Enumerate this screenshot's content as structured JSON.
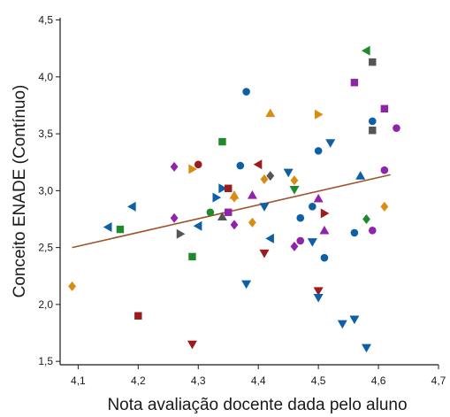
{
  "chart_data": {
    "type": "scatter",
    "title": "",
    "xlabel": "Nota avaliação docente dada pelo aluno",
    "ylabel": "Conceito ENADE (Contínuo)",
    "xlim": [
      4.07,
      4.7
    ],
    "ylim": [
      1.47,
      4.52
    ],
    "x_ticks": [
      "4,1",
      "4,2",
      "4,3",
      "4,4",
      "4,5",
      "4,6",
      "4,7"
    ],
    "y_ticks": [
      "1,5",
      "2,0",
      "2,5",
      "3,0",
      "3,5",
      "4,0",
      "4,5"
    ],
    "grid": false,
    "legend": "none",
    "trendline": {
      "x": [
        4.09,
        4.62
      ],
      "y": [
        2.5,
        3.14
      ],
      "color": "#a0522d"
    },
    "colors": {
      "blue": "#0d5fa6",
      "darkred": "#9b1c1c",
      "orange": "#d98c12",
      "green": "#1f8a2c",
      "gray": "#555555",
      "purple": "#8e24aa",
      "axis": "#1a1a1a"
    },
    "points": [
      {
        "x": 4.09,
        "y": 2.16,
        "shape": "diamond",
        "color": "orange"
      },
      {
        "x": 4.15,
        "y": 2.68,
        "shape": "tri-left",
        "color": "blue"
      },
      {
        "x": 4.17,
        "y": 2.66,
        "shape": "square",
        "color": "green"
      },
      {
        "x": 4.19,
        "y": 2.86,
        "shape": "tri-left",
        "color": "blue"
      },
      {
        "x": 4.2,
        "y": 1.9,
        "shape": "square",
        "color": "darkred"
      },
      {
        "x": 4.26,
        "y": 2.76,
        "shape": "diamond",
        "color": "purple"
      },
      {
        "x": 4.26,
        "y": 3.21,
        "shape": "diamond",
        "color": "purple"
      },
      {
        "x": 4.27,
        "y": 2.62,
        "shape": "tri-right",
        "color": "gray"
      },
      {
        "x": 4.29,
        "y": 2.42,
        "shape": "square",
        "color": "green"
      },
      {
        "x": 4.29,
        "y": 3.19,
        "shape": "tri-right",
        "color": "orange"
      },
      {
        "x": 4.29,
        "y": 1.65,
        "shape": "tri-down",
        "color": "darkred"
      },
      {
        "x": 4.3,
        "y": 3.23,
        "shape": "circle",
        "color": "darkred"
      },
      {
        "x": 4.3,
        "y": 2.69,
        "shape": "tri-left",
        "color": "blue"
      },
      {
        "x": 4.32,
        "y": 2.81,
        "shape": "circle",
        "color": "green"
      },
      {
        "x": 4.33,
        "y": 2.94,
        "shape": "tri-right",
        "color": "blue"
      },
      {
        "x": 4.34,
        "y": 3.43,
        "shape": "square",
        "color": "green"
      },
      {
        "x": 4.34,
        "y": 3.02,
        "shape": "tri-right",
        "color": "blue"
      },
      {
        "x": 4.34,
        "y": 2.77,
        "shape": "tri-up",
        "color": "gray"
      },
      {
        "x": 4.35,
        "y": 2.81,
        "shape": "square",
        "color": "purple"
      },
      {
        "x": 4.35,
        "y": 3.02,
        "shape": "square",
        "color": "darkred"
      },
      {
        "x": 4.36,
        "y": 2.96,
        "shape": "tri-up",
        "color": "orange"
      },
      {
        "x": 4.36,
        "y": 2.94,
        "shape": "diamond",
        "color": "orange"
      },
      {
        "x": 4.36,
        "y": 2.7,
        "shape": "diamond",
        "color": "purple"
      },
      {
        "x": 4.37,
        "y": 3.22,
        "shape": "circle",
        "color": "blue"
      },
      {
        "x": 4.38,
        "y": 3.87,
        "shape": "circle",
        "color": "blue"
      },
      {
        "x": 4.38,
        "y": 2.18,
        "shape": "tri-down",
        "color": "blue"
      },
      {
        "x": 4.39,
        "y": 2.96,
        "shape": "tri-up",
        "color": "purple"
      },
      {
        "x": 4.39,
        "y": 2.72,
        "shape": "diamond",
        "color": "orange"
      },
      {
        "x": 4.4,
        "y": 3.23,
        "shape": "tri-left",
        "color": "darkred"
      },
      {
        "x": 4.41,
        "y": 3.1,
        "shape": "diamond",
        "color": "orange"
      },
      {
        "x": 4.41,
        "y": 2.45,
        "shape": "tri-down",
        "color": "darkred"
      },
      {
        "x": 4.41,
        "y": 2.86,
        "shape": "tri-down",
        "color": "blue"
      },
      {
        "x": 4.42,
        "y": 3.68,
        "shape": "tri-up",
        "color": "orange"
      },
      {
        "x": 4.42,
        "y": 3.13,
        "shape": "diamond",
        "color": "gray"
      },
      {
        "x": 4.42,
        "y": 2.58,
        "shape": "tri-left",
        "color": "blue"
      },
      {
        "x": 4.45,
        "y": 3.16,
        "shape": "tri-down",
        "color": "blue"
      },
      {
        "x": 4.46,
        "y": 3.09,
        "shape": "diamond",
        "color": "orange"
      },
      {
        "x": 4.46,
        "y": 3.01,
        "shape": "tri-down",
        "color": "green"
      },
      {
        "x": 4.46,
        "y": 2.51,
        "shape": "diamond",
        "color": "purple"
      },
      {
        "x": 4.47,
        "y": 2.56,
        "shape": "circle",
        "color": "purple"
      },
      {
        "x": 4.47,
        "y": 2.76,
        "shape": "circle",
        "color": "blue"
      },
      {
        "x": 4.49,
        "y": 2.86,
        "shape": "circle",
        "color": "blue"
      },
      {
        "x": 4.49,
        "y": 2.55,
        "shape": "tri-down",
        "color": "blue"
      },
      {
        "x": 4.5,
        "y": 3.67,
        "shape": "tri-right",
        "color": "orange"
      },
      {
        "x": 4.5,
        "y": 3.35,
        "shape": "circle",
        "color": "blue"
      },
      {
        "x": 4.5,
        "y": 2.93,
        "shape": "tri-up",
        "color": "purple"
      },
      {
        "x": 4.5,
        "y": 2.12,
        "shape": "tri-down",
        "color": "darkred"
      },
      {
        "x": 4.5,
        "y": 2.06,
        "shape": "tri-down",
        "color": "blue"
      },
      {
        "x": 4.51,
        "y": 2.8,
        "shape": "tri-right",
        "color": "darkred"
      },
      {
        "x": 4.51,
        "y": 2.65,
        "shape": "tri-up",
        "color": "purple"
      },
      {
        "x": 4.51,
        "y": 2.41,
        "shape": "circle",
        "color": "blue"
      },
      {
        "x": 4.52,
        "y": 3.42,
        "shape": "tri-down",
        "color": "blue"
      },
      {
        "x": 4.54,
        "y": 1.83,
        "shape": "tri-down",
        "color": "blue"
      },
      {
        "x": 4.56,
        "y": 3.95,
        "shape": "square",
        "color": "purple"
      },
      {
        "x": 4.56,
        "y": 2.63,
        "shape": "circle",
        "color": "blue"
      },
      {
        "x": 4.56,
        "y": 1.87,
        "shape": "tri-down",
        "color": "blue"
      },
      {
        "x": 4.57,
        "y": 3.13,
        "shape": "tri-up",
        "color": "blue"
      },
      {
        "x": 4.58,
        "y": 4.23,
        "shape": "tri-left",
        "color": "green"
      },
      {
        "x": 4.58,
        "y": 2.75,
        "shape": "diamond",
        "color": "green"
      },
      {
        "x": 4.58,
        "y": 1.62,
        "shape": "tri-down",
        "color": "blue"
      },
      {
        "x": 4.59,
        "y": 4.13,
        "shape": "square",
        "color": "gray"
      },
      {
        "x": 4.59,
        "y": 3.61,
        "shape": "circle",
        "color": "blue"
      },
      {
        "x": 4.59,
        "y": 3.53,
        "shape": "square",
        "color": "gray"
      },
      {
        "x": 4.59,
        "y": 2.65,
        "shape": "circle",
        "color": "purple"
      },
      {
        "x": 4.61,
        "y": 3.72,
        "shape": "square",
        "color": "purple"
      },
      {
        "x": 4.61,
        "y": 3.18,
        "shape": "circle",
        "color": "purple"
      },
      {
        "x": 4.61,
        "y": 2.86,
        "shape": "diamond",
        "color": "orange"
      },
      {
        "x": 4.63,
        "y": 3.55,
        "shape": "circle",
        "color": "purple"
      }
    ]
  }
}
